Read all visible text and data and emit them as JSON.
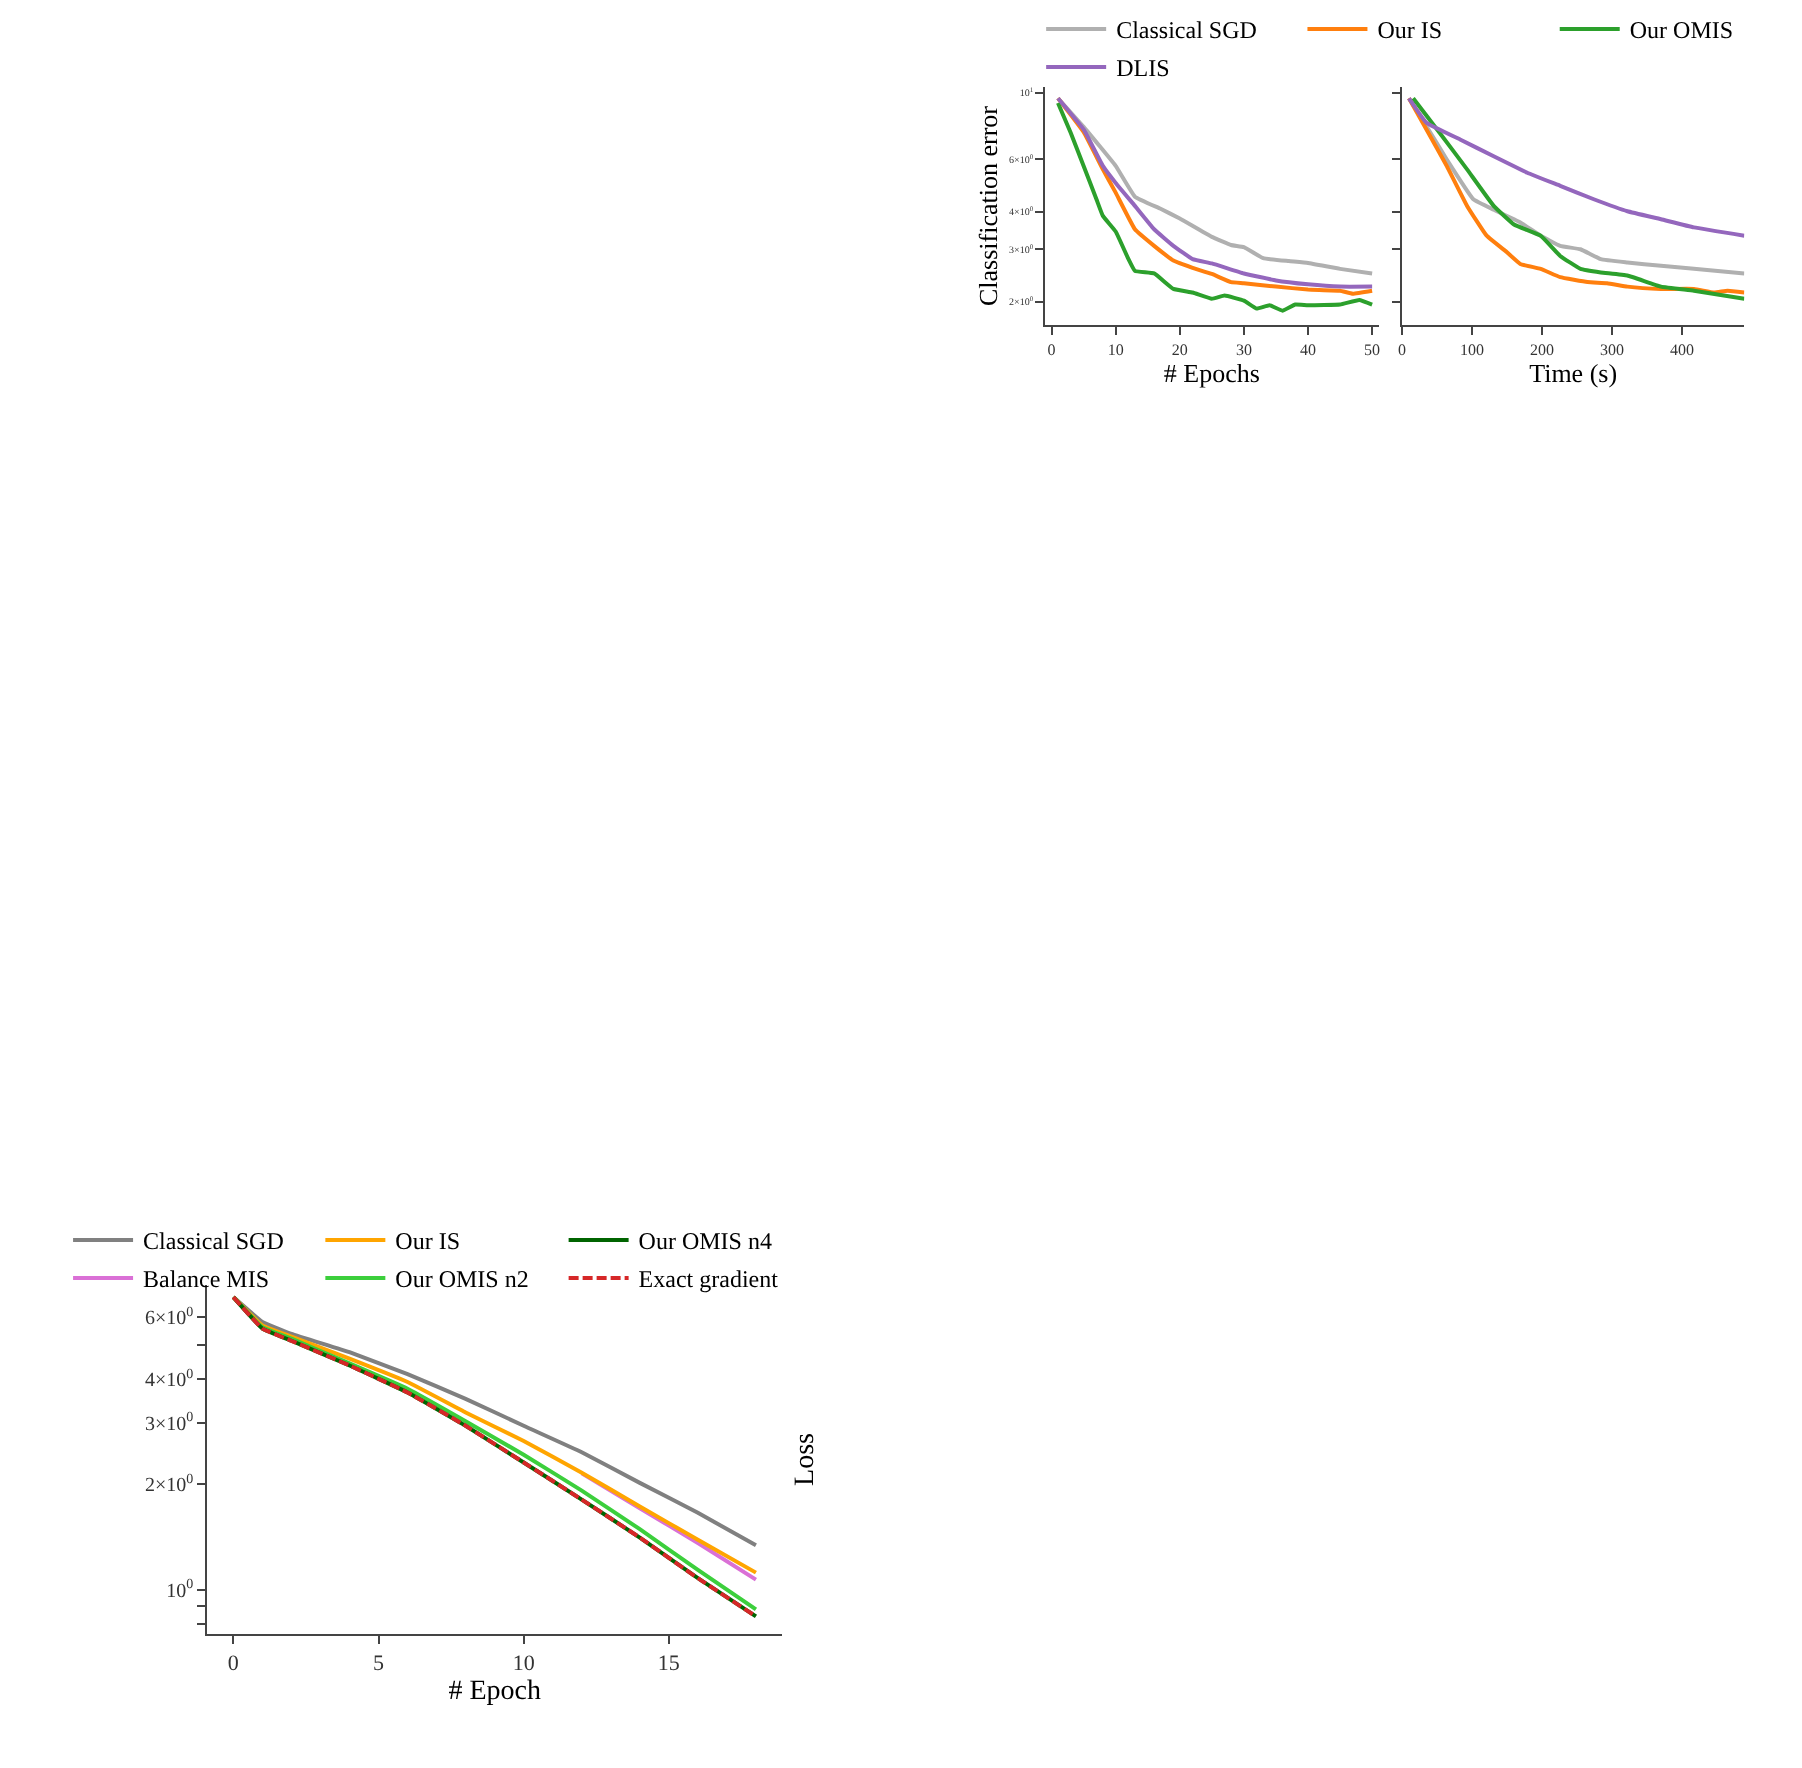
{
  "chart_data": [
    {
      "type": "line",
      "xlabel": "# Epoch",
      "ylabel": "Loss",
      "log": "y",
      "legend": "top",
      "xlim": [
        -0.9,
        18.9
      ],
      "ylim": [
        0.75,
        7.4
      ],
      "xticks": [
        0,
        5,
        10,
        15
      ],
      "yticks": [
        {
          "value": 0.8,
          "label": null
        },
        {
          "value": 0.9,
          "label": null
        },
        {
          "value": 1,
          "label": "10$^{0}$"
        },
        {
          "value": 2,
          "label": "2×10$^{0}$"
        },
        {
          "value": 3,
          "label": "3×10$^{0}$"
        },
        {
          "value": 4,
          "label": "4×10$^{0}$"
        },
        {
          "value": 5,
          "label": null
        },
        {
          "value": 6,
          "label": "6×10$^{0}$"
        }
      ],
      "x": [
        0,
        1,
        2,
        4,
        6,
        8,
        10,
        12,
        14,
        16,
        18
      ],
      "series": [
        {
          "name": "Classical SGD",
          "color": "#808080",
          "values": [
            6.85,
            5.82,
            5.38,
            4.77,
            4.13,
            3.51,
            2.94,
            2.47,
            2.02,
            1.66,
            1.34
          ]
        },
        {
          "name": "Balance MIS",
          "color": "#da70d6",
          "values": [
            null,
            null,
            null,
            null,
            null,
            null,
            null,
            2.15,
            1.71,
            1.36,
            1.07
          ]
        },
        {
          "name": "Our IS",
          "color": "#ffa500",
          "values": [
            6.85,
            5.69,
            5.28,
            4.57,
            3.92,
            3.21,
            2.66,
            2.16,
            1.73,
            1.39,
            1.12
          ]
        },
        {
          "name": "Our OMIS n2",
          "color": "#3ccf3c",
          "values": [
            6.85,
            5.62,
            5.21,
            4.43,
            3.75,
            3.03,
            2.43,
            1.92,
            1.49,
            1.14,
            0.88
          ]
        },
        {
          "name": "Our OMIS n4",
          "color": "#006400",
          "values": [
            6.85,
            5.57,
            5.14,
            4.37,
            3.66,
            2.94,
            2.31,
            1.81,
            1.41,
            1.08,
            0.84
          ]
        },
        {
          "name": "Exact gradient",
          "color": "#d62728",
          "line_style": "dashed",
          "values": [
            6.85,
            5.57,
            5.14,
            4.37,
            3.66,
            2.94,
            2.31,
            1.81,
            1.41,
            1.08,
            0.84
          ]
        }
      ]
    },
    {
      "type": "line",
      "xlabel": "# Epochs",
      "ylabel": "Classification error",
      "log": "y",
      "legend": "top",
      "xlim": [
        -1,
        51
      ],
      "ylim": [
        1.67,
        10.5
      ],
      "xticks": [
        0,
        10,
        20,
        30,
        40,
        50
      ],
      "yticks": [
        {
          "value": 2,
          "label": "2×10$^{0}$"
        },
        {
          "value": 3,
          "label": "3×10$^{0}$"
        },
        {
          "value": 4,
          "label": "4×10$^{0}$"
        },
        {
          "value": 6,
          "label": "6×10$^{0}$"
        },
        {
          "value": 10,
          "label": "10$^{1}$"
        }
      ],
      "series": [
        {
          "name": "Classical SGD",
          "color": "#b0b0b0",
          "x": [
            1,
            5,
            10,
            13,
            17,
            20,
            25,
            28,
            30,
            33,
            37,
            40,
            45,
            50
          ],
          "values": [
            9.6,
            7.7,
            5.7,
            4.5,
            4.1,
            3.8,
            3.3,
            3.1,
            3.05,
            2.8,
            2.74,
            2.7,
            2.58,
            2.49
          ]
        },
        {
          "name": "Our IS",
          "color": "#ff7f0e",
          "x": [
            1,
            5,
            8,
            10,
            13,
            16,
            19,
            22,
            25,
            28,
            30,
            35,
            40,
            45,
            47,
            50
          ],
          "values": [
            9.6,
            7.4,
            5.55,
            4.64,
            3.5,
            3.08,
            2.75,
            2.6,
            2.48,
            2.33,
            2.31,
            2.25,
            2.2,
            2.18,
            2.13,
            2.18
          ]
        },
        {
          "name": "Our OMIS",
          "color": "#2ca02c",
          "x": [
            1,
            3,
            5,
            7,
            8,
            10,
            12,
            13,
            16,
            19,
            22,
            25,
            27,
            30,
            32,
            34,
            36,
            38,
            40,
            45,
            48,
            50
          ],
          "values": [
            9.26,
            7.35,
            5.7,
            4.41,
            3.88,
            3.44,
            2.78,
            2.54,
            2.49,
            2.21,
            2.15,
            2.05,
            2.1,
            2.02,
            1.9,
            1.95,
            1.87,
            1.96,
            1.95,
            1.96,
            2.03,
            1.96
          ]
        },
        {
          "name": "DLIS",
          "color": "#9467bd",
          "x": [
            1,
            5,
            8,
            10,
            13,
            16,
            19,
            22,
            25,
            30,
            35,
            40,
            45,
            50
          ],
          "values": [
            9.6,
            7.55,
            5.7,
            5.0,
            4.19,
            3.5,
            3.08,
            2.78,
            2.69,
            2.49,
            2.36,
            2.29,
            2.25,
            2.25
          ]
        }
      ]
    },
    {
      "type": "line",
      "xlabel": "Time (s)",
      "log": "y",
      "tick_labels": "x",
      "xlim": [
        0,
        489
      ],
      "ylim": [
        1.67,
        10.5
      ],
      "xticks": [
        0,
        100,
        200,
        300,
        400
      ],
      "yticks": [
        {
          "value": 2,
          "label": null
        },
        {
          "value": 3,
          "label": null
        },
        {
          "value": 4,
          "label": null
        },
        {
          "value": 6,
          "label": null
        },
        {
          "value": 10,
          "label": null
        }
      ],
      "series": [
        {
          "color": "#b0b0b0",
          "x": [
            10,
            35,
            64,
            102,
            131,
            169,
            198,
            226,
            255,
            284,
            322,
            370,
            417,
            489
          ],
          "values": [
            9.6,
            7.74,
            5.99,
            4.41,
            4.07,
            3.69,
            3.33,
            3.08,
            3.0,
            2.78,
            2.71,
            2.64,
            2.58,
            2.49
          ]
        },
        {
          "color": "#ff7f0e",
          "x": [
            10,
            35,
            64,
            93,
            121,
            150,
            169,
            198,
            226,
            265,
            293,
            322,
            370,
            417,
            446,
            465,
            489
          ],
          "values": [
            9.6,
            7.55,
            5.7,
            4.19,
            3.33,
            2.93,
            2.68,
            2.58,
            2.42,
            2.33,
            2.31,
            2.25,
            2.21,
            2.21,
            2.15,
            2.18,
            2.15
          ]
        },
        {
          "color": "#2ca02c",
          "x": [
            16,
            54,
            93,
            131,
            160,
            198,
            226,
            255,
            284,
            322,
            370,
            417,
            489
          ],
          "values": [
            9.6,
            7.35,
            5.55,
            4.19,
            3.63,
            3.33,
            2.85,
            2.58,
            2.51,
            2.45,
            2.25,
            2.18,
            2.05
          ]
        },
        {
          "color": "#9467bd",
          "x": [
            10,
            35,
            83,
            131,
            179,
            226,
            274,
            322,
            370,
            417,
            489
          ],
          "values": [
            9.6,
            7.95,
            6.99,
            6.14,
            5.41,
            4.89,
            4.41,
            4.02,
            3.78,
            3.55,
            3.33
          ]
        }
      ]
    }
  ]
}
